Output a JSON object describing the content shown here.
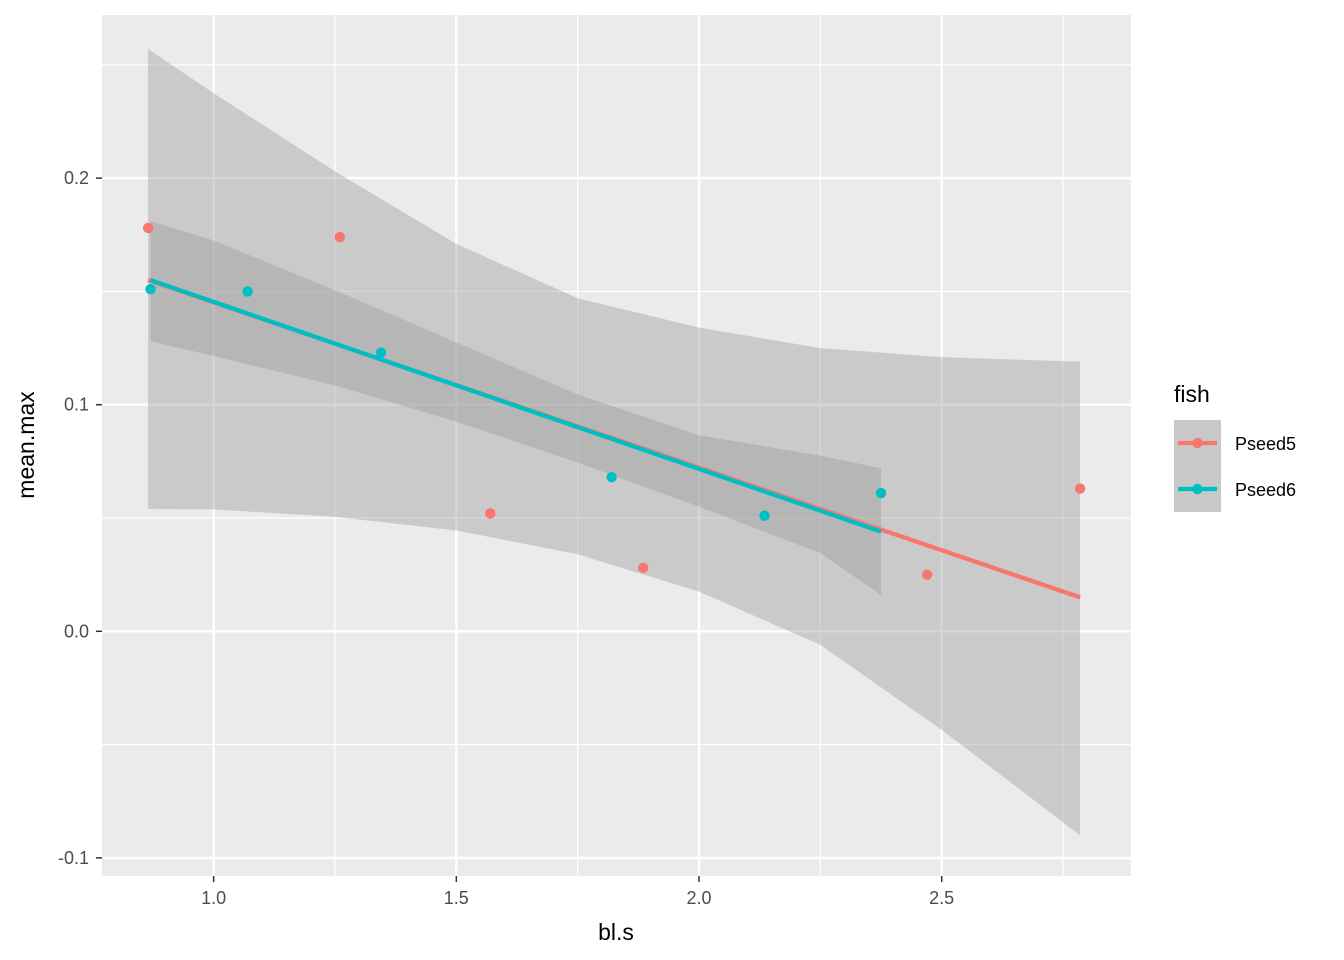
{
  "chart_data": {
    "type": "scatter",
    "xlabel": "bl.s",
    "ylabel": "mean.max",
    "xlim": [
      0.77,
      2.89
    ],
    "ylim": [
      -0.108,
      0.272
    ],
    "x_ticks": [
      1.0,
      1.5,
      2.0,
      2.5
    ],
    "x_tick_labels": [
      "1.0",
      "1.5",
      "2.0",
      "2.5"
    ],
    "y_ticks": [
      -0.1,
      0.0,
      0.1,
      0.2
    ],
    "y_tick_labels": [
      "-0.1",
      "0.0",
      "0.1",
      "0.2"
    ],
    "grid": true,
    "legend": {
      "title": "fish",
      "position": "right"
    },
    "series": [
      {
        "name": "Pseed5",
        "color": "#F8766D",
        "points": [
          {
            "x": 0.865,
            "y": 0.178
          },
          {
            "x": 1.26,
            "y": 0.174
          },
          {
            "x": 1.57,
            "y": 0.052
          },
          {
            "x": 1.885,
            "y": 0.028
          },
          {
            "x": 2.47,
            "y": 0.025
          },
          {
            "x": 2.785,
            "y": 0.063
          }
        ],
        "fit": {
          "x": [
            0.865,
            2.785
          ],
          "y": [
            0.155,
            0.015
          ]
        },
        "ribbon": {
          "x": [
            0.865,
            1.0,
            1.25,
            1.5,
            1.75,
            2.0,
            2.25,
            2.5,
            2.785
          ],
          "lower": [
            0.054,
            0.0538,
            0.0505,
            0.0445,
            0.034,
            0.0175,
            -0.006,
            -0.0435,
            -0.09
          ],
          "upper": [
            0.257,
            0.2375,
            0.203,
            0.171,
            0.147,
            0.134,
            0.125,
            0.121,
            0.119
          ]
        }
      },
      {
        "name": "Pseed6",
        "color": "#00BFC4",
        "points": [
          {
            "x": 0.87,
            "y": 0.151
          },
          {
            "x": 1.07,
            "y": 0.15
          },
          {
            "x": 1.345,
            "y": 0.123
          },
          {
            "x": 1.82,
            "y": 0.068
          },
          {
            "x": 2.135,
            "y": 0.051
          },
          {
            "x": 2.375,
            "y": 0.061
          }
        ],
        "fit": {
          "x": [
            0.87,
            2.375
          ],
          "y": [
            0.155,
            0.044
          ]
        },
        "ribbon": {
          "x": [
            0.87,
            1.0,
            1.25,
            1.5,
            1.75,
            2.0,
            2.25,
            2.375
          ],
          "lower": [
            0.128,
            0.1215,
            0.1085,
            0.0925,
            0.0745,
            0.055,
            0.0345,
            0.016
          ],
          "upper": [
            0.181,
            0.1725,
            0.1505,
            0.1275,
            0.1045,
            0.0865,
            0.0775,
            0.072
          ]
        }
      }
    ]
  }
}
